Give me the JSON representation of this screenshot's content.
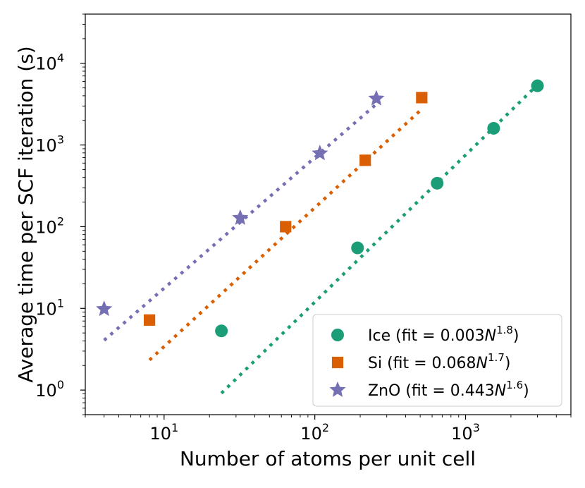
{
  "chart_data": {
    "type": "scatter",
    "xscale": "log",
    "yscale": "log",
    "xlabel": "Number of atoms per unit cell",
    "ylabel": "Average time per SCF iteration (s)",
    "xlim": [
      3,
      5000
    ],
    "ylim": [
      0.5,
      40000
    ],
    "xticks": [
      {
        "value": 10,
        "base": "10",
        "exp": "1"
      },
      {
        "value": 100,
        "base": "10",
        "exp": "2"
      },
      {
        "value": 1000,
        "base": "10",
        "exp": "3"
      }
    ],
    "yticks": [
      {
        "value": 1,
        "base": "10",
        "exp": "0"
      },
      {
        "value": 10,
        "base": "10",
        "exp": "1"
      },
      {
        "value": 100,
        "base": "10",
        "exp": "2"
      },
      {
        "value": 1000,
        "base": "10",
        "exp": "3"
      },
      {
        "value": 10000,
        "base": "10",
        "exp": "4"
      }
    ],
    "legend_position": "lower-right",
    "series": [
      {
        "name": "Ice",
        "legend_prefix": "Ice (fit = 0.003",
        "fit_var": "N",
        "fit_exp": "1.8",
        "legend_suffix": ")",
        "color": "#1b9e77",
        "marker": "circle",
        "x": [
          24,
          192,
          648,
          1536,
          3000
        ],
        "y": [
          5.3,
          55,
          340,
          1600,
          5300
        ],
        "fit": {
          "coef": 0.003,
          "exp": 1.8,
          "x_range": [
            24,
            3000
          ]
        }
      },
      {
        "name": "Si",
        "legend_prefix": "Si (fit = 0.068",
        "fit_var": "N",
        "fit_exp": "1.7",
        "legend_suffix": ")",
        "color": "#d95f02",
        "marker": "square",
        "x": [
          8,
          64,
          216,
          512
        ],
        "y": [
          7.2,
          100,
          650,
          3800
        ],
        "fit": {
          "coef": 0.068,
          "exp": 1.7,
          "x_range": [
            8,
            512
          ]
        }
      },
      {
        "name": "ZnO",
        "legend_prefix": "ZnO (fit = 0.443",
        "fit_var": "N",
        "fit_exp": "1.6",
        "legend_suffix": ")",
        "color": "#7570b3",
        "marker": "star",
        "x": [
          4,
          32,
          108,
          256
        ],
        "y": [
          9.8,
          128,
          790,
          3700
        ],
        "fit": {
          "coef": 0.443,
          "exp": 1.6,
          "x_range": [
            4,
            256
          ]
        }
      }
    ]
  }
}
